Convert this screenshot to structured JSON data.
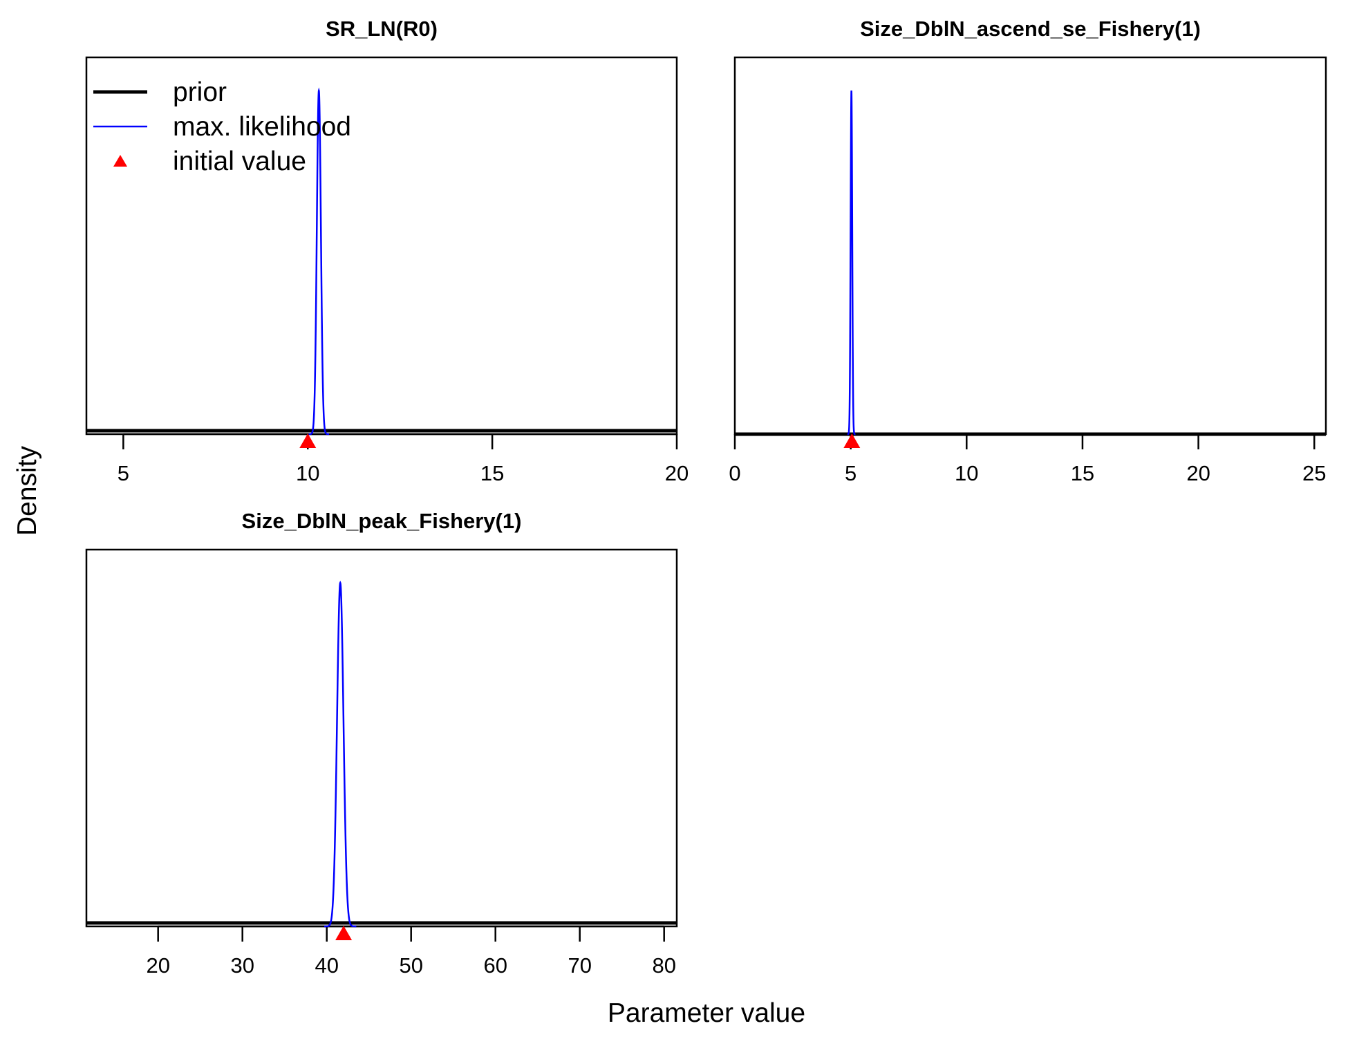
{
  "figure": {
    "ylabel": "Density",
    "xlabel": "Parameter value"
  },
  "legend": {
    "placement": "top-left",
    "items": [
      {
        "label": "prior",
        "kind": "line",
        "color": "#000000",
        "width": 5
      },
      {
        "label": "max. likelihood",
        "kind": "line",
        "color": "#0000ff",
        "width": 2.5
      },
      {
        "label": "initial value",
        "kind": "triangle",
        "color": "#ff0000"
      }
    ]
  },
  "colors": {
    "prior": "#000000",
    "max_likelihood": "#0000ff",
    "initial_value": "#ff0000"
  },
  "chart_data": [
    {
      "type": "line",
      "title": "SR_LN(R0)",
      "xlim": [
        4,
        20
      ],
      "xticks": [
        5,
        10,
        15,
        20
      ],
      "prior_density": 0.01,
      "mle": {
        "mean": 10.3,
        "sd": 0.055,
        "peak": 1
      },
      "initial_value": 10,
      "grid": false
    },
    {
      "type": "line",
      "title": "Size_DblN_ascend_se_Fishery(1)",
      "xlim": [
        0,
        25.5
      ],
      "xticks": [
        0,
        5,
        10,
        15,
        20,
        25
      ],
      "prior_density": 0.0,
      "mle": {
        "mean": 5.03,
        "sd": 0.035,
        "peak": 1
      },
      "initial_value": 5.05,
      "grid": false
    },
    {
      "type": "line",
      "title": "Size_DblN_peak_Fishery(1)",
      "xlim": [
        11.5,
        81.5
      ],
      "xticks": [
        20,
        30,
        40,
        50,
        60,
        70,
        80
      ],
      "prior_density": 0.01,
      "mle": {
        "mean": 41.6,
        "sd": 0.38,
        "peak": 1
      },
      "initial_value": 42,
      "grid": false
    }
  ]
}
